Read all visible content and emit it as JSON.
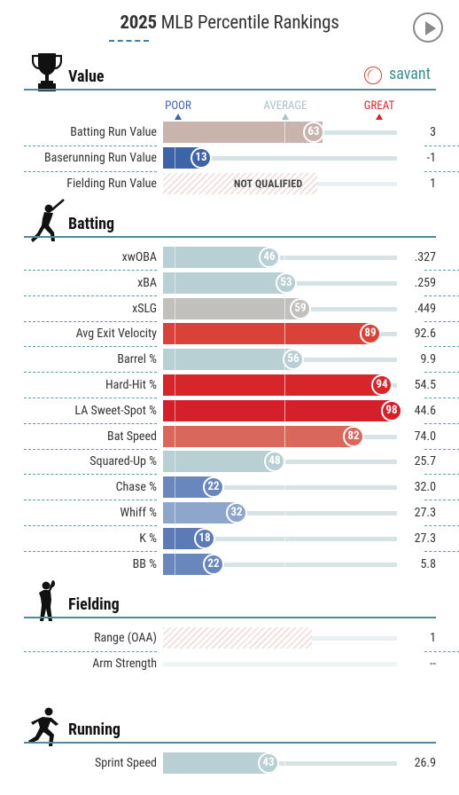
{
  "title": {
    "year": "2025",
    "rest": "MLB Percentile Rankings"
  },
  "brand": {
    "name": "savant"
  },
  "legend": {
    "poor": "POOR",
    "average": "AVERAGE",
    "great": "GREAT"
  },
  "colors": {
    "poor": "#3e5fa8",
    "average": "#aac5ca",
    "great": "#d6262c"
  },
  "sections": {
    "value": {
      "title": "Value"
    },
    "batting": {
      "title": "Batting"
    },
    "fielding": {
      "title": "Fielding"
    },
    "running": {
      "title": "Running"
    }
  },
  "value_rows": [
    {
      "label": "Batting Run Value",
      "percentile": "63",
      "value": "3",
      "color": "#c9b4ad"
    },
    {
      "label": "Baserunning Run Value",
      "percentile": "13",
      "value": "-1",
      "color": "#3e64a8"
    },
    {
      "label": "Fielding Run Value",
      "percentile": "",
      "value": "1",
      "status": "NOT QUALIFIED"
    }
  ],
  "batting_rows": [
    {
      "label": "xwOBA",
      "percentile": "46",
      "value": ".327",
      "color": "#b8cfd3"
    },
    {
      "label": "xBA",
      "percentile": "53",
      "value": ".259",
      "color": "#b8cfd3"
    },
    {
      "label": "xSLG",
      "percentile": "59",
      "value": ".449",
      "color": "#c2c0bd"
    },
    {
      "label": "Avg Exit Velocity",
      "percentile": "89",
      "value": "92.6",
      "color": "#d84239"
    },
    {
      "label": "Barrel %",
      "percentile": "56",
      "value": "9.9",
      "color": "#b8cfd3"
    },
    {
      "label": "Hard-Hit %",
      "percentile": "94",
      "value": "54.5",
      "color": "#d6262c"
    },
    {
      "label": "LA Sweet-Spot %",
      "percentile": "98",
      "value": "44.6",
      "color": "#d4202b"
    },
    {
      "label": "Bat Speed",
      "percentile": "82",
      "value": "74.0",
      "color": "#d9675c"
    },
    {
      "label": "Squared-Up %",
      "percentile": "48",
      "value": "25.7",
      "color": "#b8cfd3"
    },
    {
      "label": "Chase %",
      "percentile": "22",
      "value": "32.0",
      "color": "#6a87bd"
    },
    {
      "label": "Whiff %",
      "percentile": "32",
      "value": "27.3",
      "color": "#8fa6cc"
    },
    {
      "label": "K %",
      "percentile": "18",
      "value": "27.3",
      "color": "#5c7bb6"
    },
    {
      "label": "BB %",
      "percentile": "22",
      "value": "5.8",
      "color": "#6a87bd"
    }
  ],
  "fielding_rows": [
    {
      "label": "Range (OAA)",
      "value": "1"
    },
    {
      "label": "Arm Strength",
      "value": "--"
    }
  ],
  "running_rows": [
    {
      "label": "Sprint Speed",
      "percentile": "43",
      "value": "26.9",
      "color": "#b8cfd3"
    }
  ]
}
